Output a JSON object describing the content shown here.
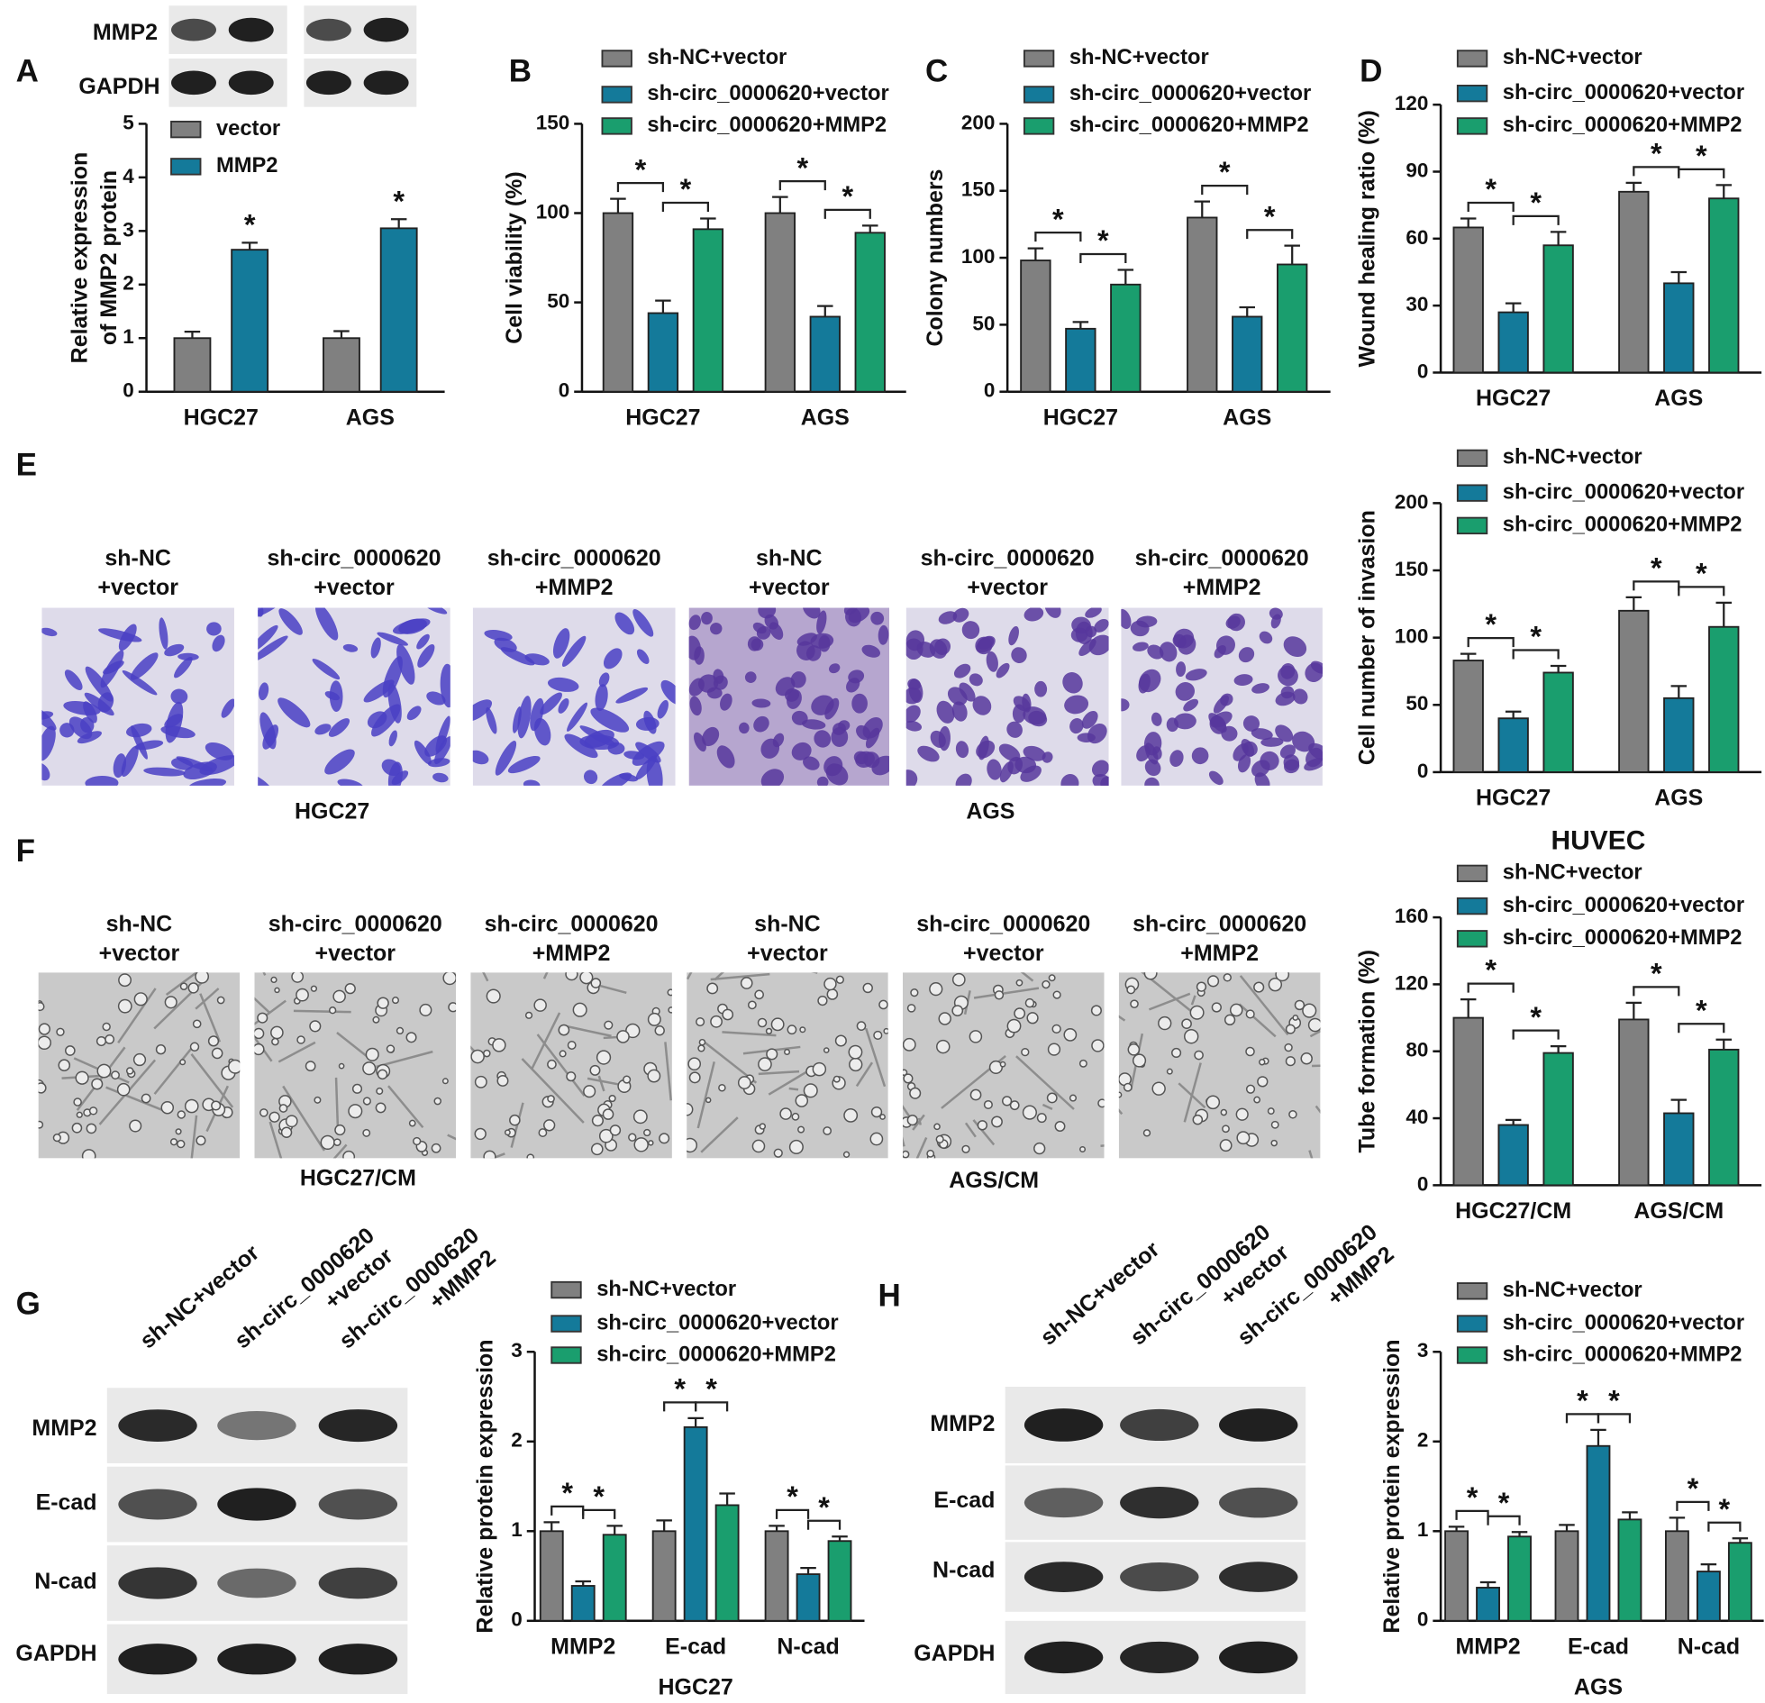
{
  "panel_letters": [
    "A",
    "B",
    "C",
    "D",
    "E",
    "F",
    "G",
    "H"
  ],
  "blots": {
    "A": {
      "rows": [
        "MMP2",
        "GAPDH"
      ]
    },
    "G": {
      "columns": [
        [
          "sh-NC+vector"
        ],
        [
          "sh-circ_0000620",
          "+vector"
        ],
        [
          "sh-circ_0000620",
          "+MMP2"
        ]
      ],
      "rows": [
        "MMP2",
        "E-cad",
        "N-cad",
        "GAPDH"
      ]
    },
    "H": {
      "columns": [
        [
          "sh-NC+vector"
        ],
        [
          "sh-circ_0000620",
          "+vector"
        ],
        [
          "sh-circ_0000620",
          "+MMP2"
        ]
      ],
      "rows": [
        "MMP2",
        "E-cad",
        "N-cad",
        "GAPDH"
      ]
    }
  },
  "micrographs": {
    "E": {
      "labels": [
        [
          "sh-NC",
          "+vector"
        ],
        [
          "sh-circ_0000620",
          "+vector"
        ],
        [
          "sh-circ_0000620",
          "+MMP2"
        ],
        [
          "sh-NC",
          "+vector"
        ],
        [
          "sh-circ_0000620",
          "+vector"
        ],
        [
          "sh-circ_0000620",
          "+MMP2"
        ]
      ],
      "groups": [
        "HGC27",
        "AGS"
      ]
    },
    "F": {
      "labels": [
        [
          "sh-NC",
          "+vector"
        ],
        [
          "sh-circ_0000620",
          "+vector"
        ],
        [
          "sh-circ_0000620",
          "+MMP2"
        ],
        [
          "sh-NC",
          "+vector"
        ],
        [
          "sh-circ_0000620",
          "+vector"
        ],
        [
          "sh-circ_0000620",
          "+MMP2"
        ]
      ],
      "groups": [
        "HGC27/CM",
        "AGS/CM"
      ]
    }
  },
  "chart_data": [
    {
      "type": "bar",
      "ylabel": [
        "Relative expression",
        "of MMP2 protein"
      ],
      "categories": [
        "HGC27",
        "AGS"
      ],
      "series": [
        {
          "name": "vector",
          "color": "#808080",
          "values": [
            1,
            1
          ],
          "errors": [
            0.12,
            0.13
          ]
        },
        {
          "name": "MMP2",
          "color": "#147a9a",
          "values": [
            2.65,
            3.05
          ],
          "errors": [
            0.13,
            0.17
          ]
        }
      ],
      "ylim": [
        0,
        5
      ],
      "yticks": [
        0,
        1,
        2,
        3,
        4,
        5
      ],
      "annotation": "*"
    },
    {
      "type": "bar",
      "ylabel": "Cell viability (%)",
      "categories": [
        "HGC27",
        "AGS"
      ],
      "series": [
        {
          "name": "sh-NC+vector",
          "color": "#808080",
          "values": [
            100,
            100
          ],
          "errors": [
            8,
            9
          ]
        },
        {
          "name": "sh-circ_0000620+vector",
          "color": "#147a9a",
          "values": [
            44,
            42
          ],
          "errors": [
            7,
            6
          ]
        },
        {
          "name": "sh-circ_0000620+MMP2",
          "color": "#1a9e6e",
          "values": [
            91,
            89
          ],
          "errors": [
            6,
            4
          ]
        }
      ],
      "ylim": [
        0,
        150
      ],
      "yticks": [
        0,
        50,
        100,
        150
      ],
      "annotation": "*"
    },
    {
      "type": "bar",
      "ylabel": "Colony numbers",
      "categories": [
        "HGC27",
        "AGS"
      ],
      "series": [
        {
          "name": "sh-NC+vector",
          "color": "#808080",
          "values": [
            98,
            130
          ],
          "errors": [
            9,
            12
          ]
        },
        {
          "name": "sh-circ_0000620+vector",
          "color": "#147a9a",
          "values": [
            47,
            56
          ],
          "errors": [
            5,
            7
          ]
        },
        {
          "name": "sh-circ_0000620+MMP2",
          "color": "#1a9e6e",
          "values": [
            80,
            95
          ],
          "errors": [
            11,
            14
          ]
        }
      ],
      "ylim": [
        0,
        200
      ],
      "yticks": [
        0,
        50,
        100,
        150,
        200
      ],
      "annotation": "*"
    },
    {
      "type": "bar",
      "ylabel": "Wound healing ratio (%)",
      "categories": [
        "HGC27",
        "AGS"
      ],
      "series": [
        {
          "name": "sh-NC+vector",
          "color": "#808080",
          "values": [
            65,
            81
          ],
          "errors": [
            4,
            4
          ]
        },
        {
          "name": "sh-circ_0000620+vector",
          "color": "#147a9a",
          "values": [
            27,
            40
          ],
          "errors": [
            4,
            5
          ]
        },
        {
          "name": "sh-circ_0000620+MMP2",
          "color": "#1a9e6e",
          "values": [
            57,
            78
          ],
          "errors": [
            6,
            6
          ]
        }
      ],
      "ylim": [
        0,
        120
      ],
      "yticks": [
        0,
        30,
        60,
        90,
        120
      ],
      "annotation": "*"
    },
    {
      "type": "bar",
      "ylabel": "Cell number of invasion",
      "categories": [
        "HGC27",
        "AGS"
      ],
      "series": [
        {
          "name": "sh-NC+vector",
          "color": "#808080",
          "values": [
            83,
            120
          ],
          "errors": [
            5,
            10
          ]
        },
        {
          "name": "sh-circ_0000620+vector",
          "color": "#147a9a",
          "values": [
            40,
            55
          ],
          "errors": [
            5,
            9
          ]
        },
        {
          "name": "sh-circ_0000620+MMP2",
          "color": "#1a9e6e",
          "values": [
            74,
            108
          ],
          "errors": [
            5,
            18
          ]
        }
      ],
      "ylim": [
        0,
        200
      ],
      "yticks": [
        0,
        50,
        100,
        150,
        200
      ],
      "annotation": "*"
    },
    {
      "type": "bar",
      "title": "HUVEC",
      "ylabel": "Tube formation (%)",
      "categories": [
        "HGC27/CM",
        "AGS/CM"
      ],
      "series": [
        {
          "name": "sh-NC+vector",
          "color": "#808080",
          "values": [
            100,
            99
          ],
          "errors": [
            11,
            10
          ]
        },
        {
          "name": "sh-circ_0000620+vector",
          "color": "#147a9a",
          "values": [
            36,
            43
          ],
          "errors": [
            3,
            8
          ]
        },
        {
          "name": "sh-circ_0000620+MMP2",
          "color": "#1a9e6e",
          "values": [
            79,
            81
          ],
          "errors": [
            4,
            6
          ]
        }
      ],
      "ylim": [
        0,
        160
      ],
      "yticks": [
        0,
        40,
        80,
        120,
        160
      ],
      "annotation": "*"
    },
    {
      "type": "bar",
      "ylabel": "Relative protein expression",
      "xlabel": "HGC27",
      "categories": [
        "MMP2",
        "E-cad",
        "N-cad"
      ],
      "series": [
        {
          "name": "sh-NC+vector",
          "color": "#808080",
          "values": [
            1,
            1,
            1
          ],
          "errors": [
            0.1,
            0.12,
            0.06
          ]
        },
        {
          "name": "sh-circ_0000620+vector",
          "color": "#147a9a",
          "values": [
            0.39,
            2.16,
            0.52
          ],
          "errors": [
            0.05,
            0.1,
            0.07
          ]
        },
        {
          "name": "sh-circ_0000620+MMP2",
          "color": "#1a9e6e",
          "values": [
            0.96,
            1.29,
            0.89
          ],
          "errors": [
            0.1,
            0.13,
            0.05
          ]
        }
      ],
      "ylim": [
        0,
        3
      ],
      "yticks": [
        0,
        1,
        2,
        3
      ],
      "annotation": "*"
    },
    {
      "type": "bar",
      "ylabel": "Relative protein expression",
      "xlabel": "AGS",
      "categories": [
        "MMP2",
        "E-cad",
        "N-cad"
      ],
      "series": [
        {
          "name": "sh-NC+vector",
          "color": "#808080",
          "values": [
            1,
            1,
            1
          ],
          "errors": [
            0.05,
            0.07,
            0.15
          ]
        },
        {
          "name": "sh-circ_0000620+vector",
          "color": "#147a9a",
          "values": [
            0.37,
            1.95,
            0.55
          ],
          "errors": [
            0.06,
            0.18,
            0.08
          ]
        },
        {
          "name": "sh-circ_0000620+MMP2",
          "color": "#1a9e6e",
          "values": [
            0.94,
            1.13,
            0.87
          ],
          "errors": [
            0.05,
            0.08,
            0.05
          ]
        }
      ],
      "ylim": [
        0,
        3
      ],
      "yticks": [
        0,
        1,
        2,
        3
      ],
      "annotation": "*"
    }
  ]
}
